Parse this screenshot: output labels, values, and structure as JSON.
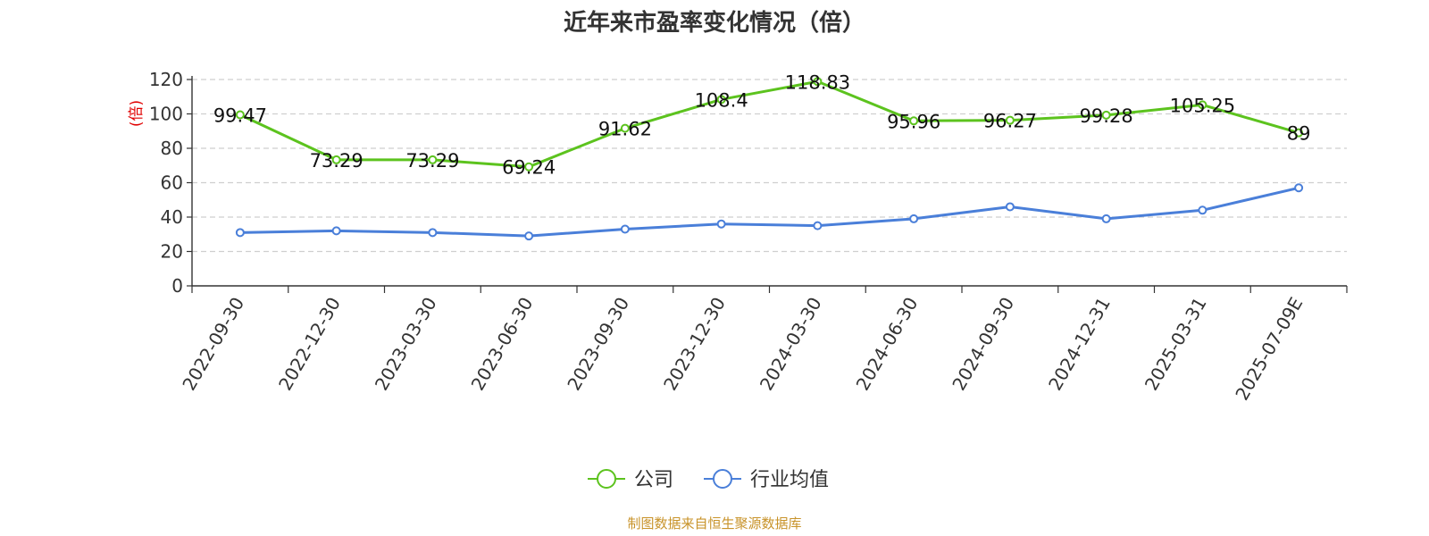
{
  "chart_data": {
    "type": "line",
    "title": "近年来市盈率变化情况（倍）",
    "ylabel": "(倍)",
    "ylim": [
      0,
      120
    ],
    "yticks": [
      0,
      20,
      40,
      60,
      80,
      100,
      120
    ],
    "grid": true,
    "legend_position": "bottom",
    "categories": [
      "2022-09-30",
      "2022-12-30",
      "2023-03-30",
      "2023-06-30",
      "2023-09-30",
      "2023-12-30",
      "2024-03-30",
      "2024-06-30",
      "2024-09-30",
      "2024-12-31",
      "2025-03-31",
      "2025-07-09E"
    ],
    "series": [
      {
        "name": "公司",
        "color": "#5cc31e",
        "values": [
          99.47,
          73.29,
          73.29,
          69.24,
          91.62,
          108.4,
          118.83,
          95.96,
          96.27,
          99.28,
          105.25,
          89
        ],
        "labels": [
          "99.47",
          "73.29",
          "73.29",
          "69.24",
          "91.62",
          "108.4",
          "118.83",
          "95.96",
          "96.27",
          "99.28",
          "105.25",
          "89"
        ]
      },
      {
        "name": "行业均值",
        "color": "#4a7fd9",
        "values": [
          31,
          32,
          31,
          29,
          33,
          36,
          35,
          39,
          46,
          39,
          44,
          57
        ]
      }
    ],
    "source": "制图数据来自恒生聚源数据库"
  }
}
